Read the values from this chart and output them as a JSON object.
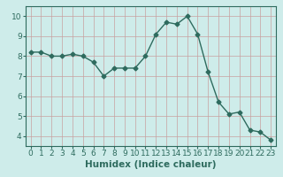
{
  "x": [
    0,
    1,
    2,
    3,
    4,
    5,
    6,
    7,
    8,
    9,
    10,
    11,
    12,
    13,
    14,
    15,
    16,
    17,
    18,
    19,
    20,
    21,
    22,
    23
  ],
  "y": [
    8.2,
    8.2,
    8.0,
    8.0,
    8.1,
    8.0,
    7.7,
    7.0,
    7.4,
    7.4,
    7.4,
    8.0,
    9.1,
    9.7,
    9.6,
    10.0,
    9.1,
    7.2,
    5.7,
    5.1,
    5.2,
    4.3,
    4.2,
    3.8
  ],
  "line_color": "#2e6b5e",
  "marker": "D",
  "markersize": 2.5,
  "linewidth": 1.0,
  "bg_color": "#ceecea",
  "grid_color": "#c8a0a0",
  "xlabel": "Humidex (Indice chaleur)",
  "xlim": [
    -0.5,
    23.5
  ],
  "ylim": [
    3.5,
    10.5
  ],
  "yticks": [
    4,
    5,
    6,
    7,
    8,
    9,
    10
  ],
  "xticks": [
    0,
    1,
    2,
    3,
    4,
    5,
    6,
    7,
    8,
    9,
    10,
    11,
    12,
    13,
    14,
    15,
    16,
    17,
    18,
    19,
    20,
    21,
    22,
    23
  ],
  "xlabel_fontsize": 7.5,
  "tick_fontsize": 6.5,
  "spine_color": "#2e6b5e"
}
